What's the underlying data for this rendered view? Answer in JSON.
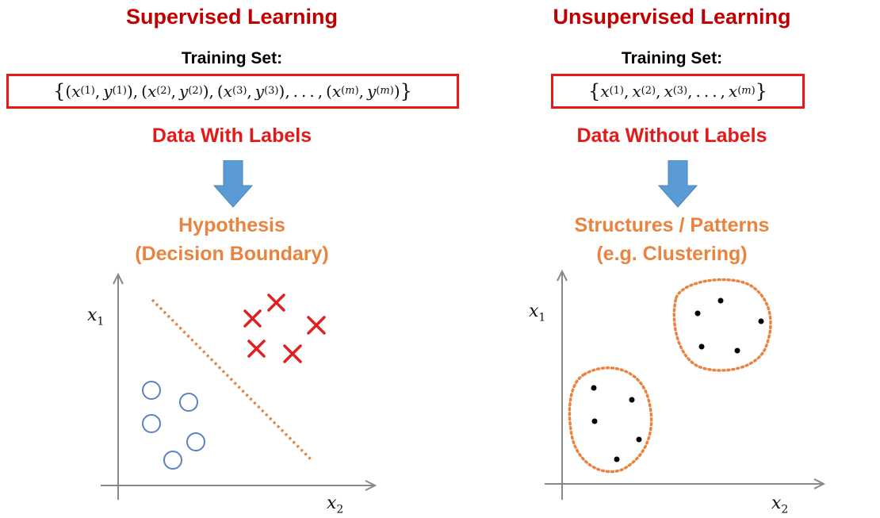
{
  "supervised": {
    "title": "Supervised Learning",
    "training_set_label": "Training Set:",
    "data_label": "Data With Labels",
    "result_line1": "Hypothesis",
    "result_line2": "(Decision Boundary)",
    "x1_label": "x",
    "x1_sub": "1",
    "x2_label": "x",
    "x2_sub": "2"
  },
  "unsupervised": {
    "title": "Unsupervised Learning",
    "training_set_label": "Training Set:",
    "data_label": "Data Without Labels",
    "result_line1": "Structures / Patterns",
    "result_line2": "(e.g. Clustering)",
    "x1_label": "x",
    "x1_sub": "1",
    "x2_label": "x",
    "x2_sub": "2"
  },
  "colors": {
    "title": "#c00000",
    "label_red": "#e21a1a",
    "orange": "#e88440",
    "arrow_blue": "#5b9bd5",
    "circle_blue": "#5b82c0",
    "cross_red": "#e02020"
  }
}
